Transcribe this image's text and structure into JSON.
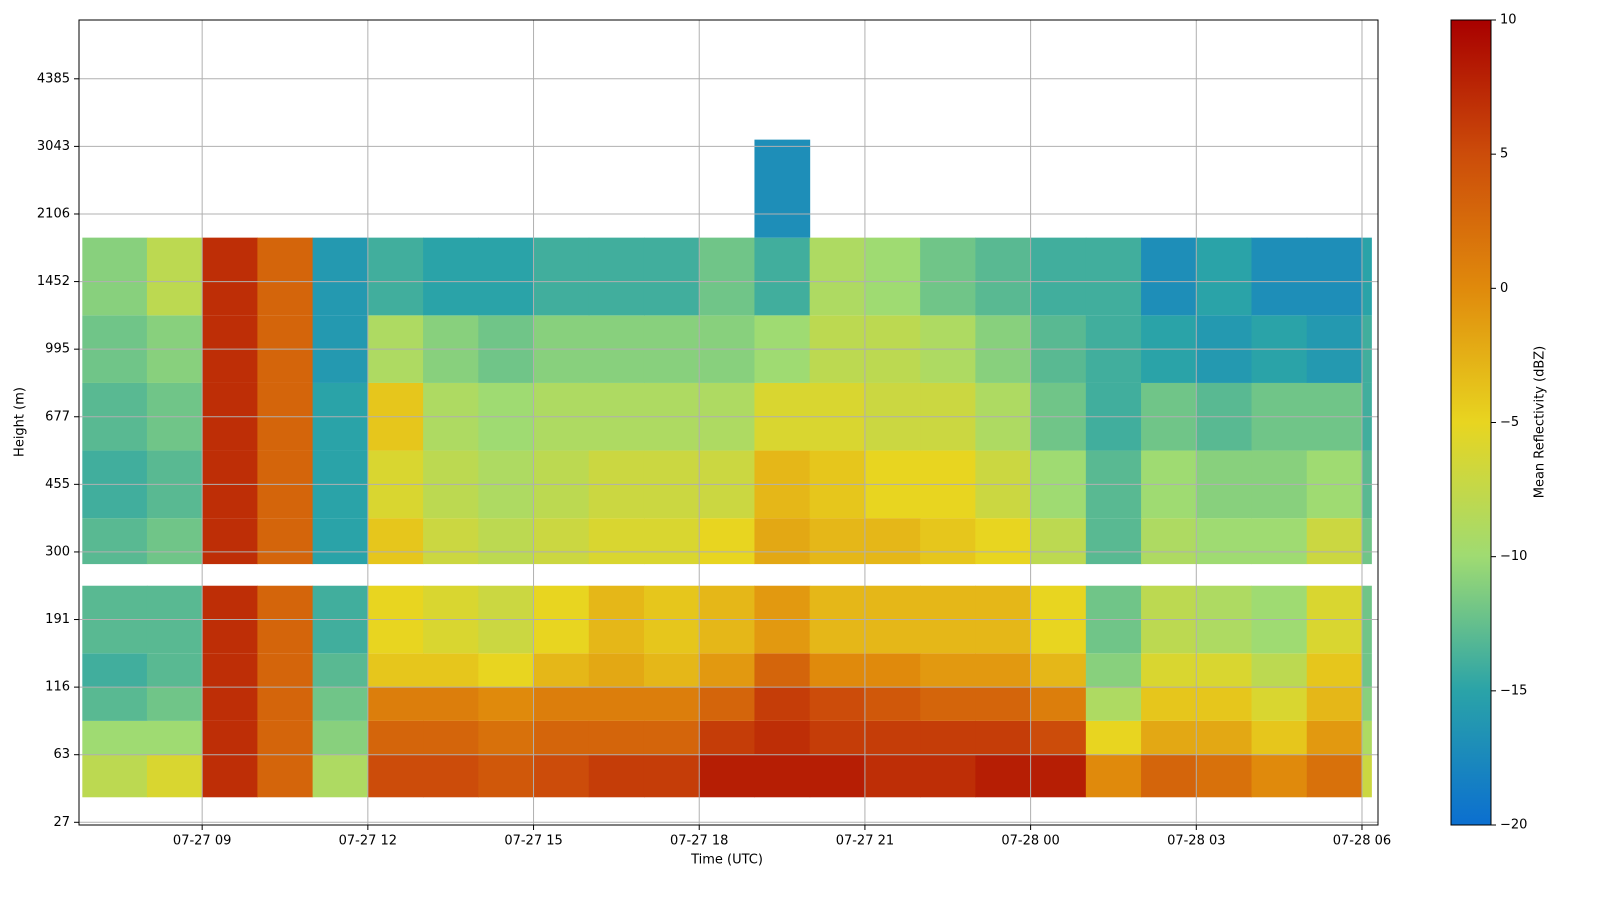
{
  "chart_data": {
    "type": "heatmap",
    "xlabel": "Time (UTC)",
    "ylabel": "Height (m)",
    "colorbar_label": "Mean Reflectivity (dBZ)",
    "xlim": [
      6.77,
      30.29
    ],
    "xticks": [
      {
        "value": 9,
        "label": "07-27 09"
      },
      {
        "value": 12,
        "label": "07-27 12"
      },
      {
        "value": 15,
        "label": "07-27 15"
      },
      {
        "value": 18,
        "label": "07-27 18"
      },
      {
        "value": 21,
        "label": "07-27 21"
      },
      {
        "value": 24,
        "label": "07-28 00"
      },
      {
        "value": 27,
        "label": "07-28 03"
      },
      {
        "value": 30,
        "label": "07-28 06"
      }
    ],
    "ylim": [
      -0.04,
      11.87
    ],
    "yticks": [
      {
        "value": 0,
        "label": "27"
      },
      {
        "value": 1,
        "label": "63"
      },
      {
        "value": 2,
        "label": "116"
      },
      {
        "value": 3,
        "label": "191"
      },
      {
        "value": 4,
        "label": "300"
      },
      {
        "value": 5,
        "label": "455"
      },
      {
        "value": 6,
        "label": "677"
      },
      {
        "value": 7,
        "label": "995"
      },
      {
        "value": 8,
        "label": "1452"
      },
      {
        "value": 9,
        "label": "2106"
      },
      {
        "value": 10,
        "label": "3043"
      },
      {
        "value": 11,
        "label": "4385"
      }
    ],
    "grid": true,
    "x_edges": [
      6.83,
      8,
      9,
      10,
      11,
      12,
      13,
      14,
      15,
      16,
      17,
      18,
      19,
      20,
      21,
      22,
      23,
      24,
      25,
      26,
      27,
      28,
      29,
      30,
      30.17
    ],
    "y_edges": [
      0.37,
      1,
      1.5,
      2,
      2.5,
      3.5,
      3.82,
      4.5,
      5.5,
      6.5,
      7.5,
      8.65,
      10.1
    ],
    "values": [
      [
        -8,
        -6,
        7,
        3,
        -9,
        5,
        5,
        4,
        5,
        6,
        6,
        8,
        8,
        8,
        7,
        7,
        8,
        8,
        0,
        3,
        2,
        0,
        2,
        -7
      ],
      [
        -10,
        -10,
        7,
        3,
        -11,
        3,
        3,
        2,
        3,
        3,
        3,
        6,
        7,
        6,
        6,
        6,
        6,
        5,
        -5,
        -2,
        -2,
        -4,
        -1,
        -9
      ],
      [
        -13,
        -12,
        7,
        3,
        -12,
        1,
        1,
        0,
        1,
        1,
        1,
        3,
        6,
        5,
        4,
        3,
        3,
        1,
        -9,
        -4,
        -4,
        -6,
        -3,
        -11
      ],
      [
        -14,
        -13,
        7,
        3,
        -13,
        -4,
        -4,
        -5,
        -3,
        -2,
        -3,
        -1,
        3,
        0,
        0,
        -1,
        -1,
        -3,
        -11,
        -6,
        -6,
        -8,
        -4,
        -12
      ],
      [
        -13,
        -13,
        7,
        3,
        -14,
        -5,
        -6,
        -7,
        -5,
        -3,
        -4,
        -3,
        -1,
        -3,
        -3,
        -3,
        -3,
        -5,
        -12,
        -8,
        -9,
        -10,
        -6,
        -12
      ],
      [
        null,
        null,
        null,
        null,
        null,
        null,
        null,
        null,
        null,
        null,
        null,
        null,
        null,
        null,
        null,
        null,
        null,
        null,
        null,
        null,
        null,
        null,
        null,
        null
      ],
      [
        -13,
        -12,
        7,
        3,
        -15,
        -4,
        -7,
        -8,
        -7,
        -6,
        -6,
        -5,
        -2,
        -3,
        -3,
        -4,
        -5,
        -8,
        -13,
        -9,
        -10,
        -10,
        -7,
        -12
      ],
      [
        -14,
        -13,
        7,
        3,
        -15,
        -6,
        -8,
        -9,
        -8,
        -7,
        -7,
        -7,
        -3,
        -4,
        -5,
        -5,
        -7,
        -10,
        -13,
        -10,
        -11,
        -11,
        -10,
        -13
      ],
      [
        -13,
        -12,
        7,
        3,
        -15,
        -4,
        -9,
        -10,
        -9,
        -9,
        -9,
        -9,
        -6,
        -6,
        -7,
        -7,
        -9,
        -12,
        -14,
        -12,
        -13,
        -12,
        -12,
        -14
      ],
      [
        -12,
        -11,
        7,
        3,
        -16,
        -9,
        -11,
        -12,
        -11,
        -11,
        -11,
        -11,
        -10,
        -8,
        -8,
        -9,
        -11,
        -13,
        -14,
        -15,
        -16,
        -15,
        -16,
        -14
      ],
      [
        -11,
        -8,
        7,
        3,
        -16,
        -14,
        -15,
        -15,
        -14,
        -14,
        -14,
        -12,
        -14,
        -9,
        -10,
        -12,
        -13,
        -14,
        -14,
        -17,
        -15,
        -17,
        -17,
        -15
      ],
      [
        null,
        null,
        null,
        null,
        null,
        null,
        null,
        null,
        null,
        null,
        null,
        null,
        -17,
        null,
        null,
        null,
        null,
        null,
        null,
        null,
        null,
        null,
        null,
        null
      ]
    ],
    "clim": [
      -20,
      10
    ],
    "cticks": [
      {
        "value": -20,
        "label": "−20"
      },
      {
        "value": -15,
        "label": "−15"
      },
      {
        "value": -10,
        "label": "−10"
      },
      {
        "value": -5,
        "label": "−5"
      },
      0,
      5,
      10
    ],
    "colormap": [
      "#0b6fd0",
      "#2aa3a8",
      "#9fdb72",
      "#e8d520",
      "#e08a0c",
      "#cc4c0a",
      "#a80000"
    ]
  }
}
